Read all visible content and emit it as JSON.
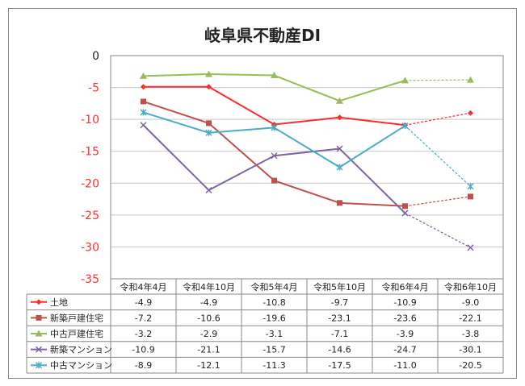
{
  "chart_data": {
    "type": "line",
    "title": "岐阜県不動産DI",
    "categories": [
      "令和4年4月",
      "令和4年10月",
      "令和5年4月",
      "令和5年10月",
      "令和6年4月",
      "令和6年10月"
    ],
    "ylim": [
      -35,
      0
    ],
    "yticks": [
      "0",
      "-5",
      "-10",
      "-15",
      "-20",
      "-25",
      "-30",
      "-35"
    ],
    "grid": true,
    "legend": "data-table",
    "last_segment_dashed": true,
    "series": [
      {
        "name": "土地",
        "values": [
          -4.9,
          -4.9,
          -10.8,
          -9.7,
          -10.9,
          -9.0
        ],
        "labels": [
          "-4.9",
          "-4.9",
          "-10.8",
          "-9.7",
          "-10.9",
          "-9.0"
        ],
        "color": "#ff2a2a",
        "marker": "diamond"
      },
      {
        "name": "新築戸建住宅",
        "values": [
          -7.2,
          -10.6,
          -19.6,
          -23.1,
          -23.6,
          -22.1
        ],
        "labels": [
          "-7.2",
          "-10.6",
          "-19.6",
          "-23.1",
          "-23.6",
          "-22.1"
        ],
        "color": "#c0504d",
        "marker": "square"
      },
      {
        "name": "中古戸建住宅",
        "values": [
          -3.2,
          -2.9,
          -3.1,
          -7.1,
          -3.9,
          -3.8
        ],
        "labels": [
          "-3.2",
          "-2.9",
          "-3.1",
          "-7.1",
          "-3.9",
          "-3.8"
        ],
        "color": "#9bbb59",
        "marker": "triangle"
      },
      {
        "name": "新築マンション",
        "values": [
          -10.9,
          -21.1,
          -15.7,
          -14.6,
          -24.7,
          -30.1
        ],
        "labels": [
          "-10.9",
          "-21.1",
          "-15.7",
          "-14.6",
          "-24.7",
          "-30.1"
        ],
        "color": "#8064a2",
        "marker": "x"
      },
      {
        "name": "中古マンション",
        "values": [
          -8.9,
          -12.1,
          -11.3,
          -17.5,
          -11.0,
          -20.5
        ],
        "labels": [
          "-8.9",
          "-12.1",
          "-11.3",
          "-17.5",
          "-11.0",
          "-20.5"
        ],
        "color": "#4bacc6",
        "marker": "star"
      }
    ]
  }
}
